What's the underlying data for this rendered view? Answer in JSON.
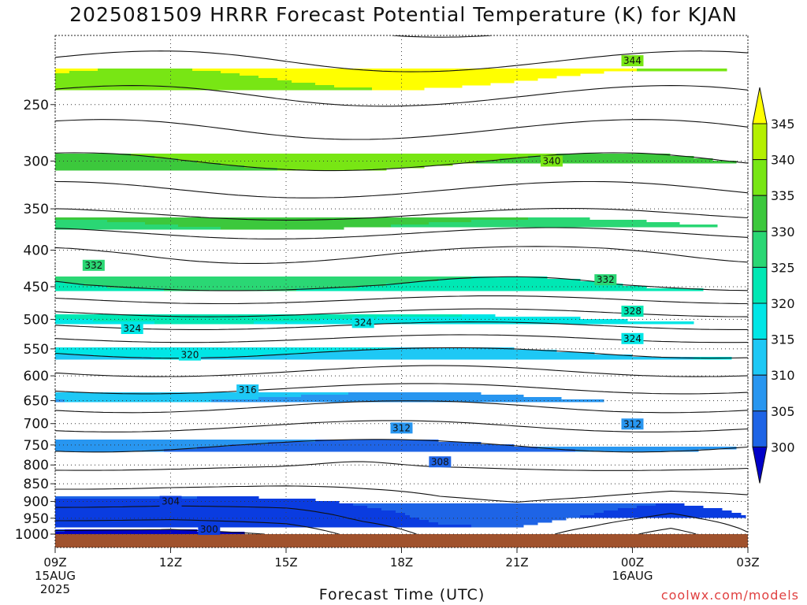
{
  "title": "2025081509 HRRR Forecast Potential Temperature (K) for KJAN",
  "watermark": "coolwx.com/models",
  "chart_data": {
    "type": "heatmap",
    "title": "2025081509 HRRR Forecast Potential Temperature (K) for KJAN",
    "xlabel": "Forecast Time (UTC)",
    "ylabel": "",
    "x_ticks": [
      {
        "hour": 0,
        "label": "09Z",
        "sub": [
          "15AUG",
          "2025"
        ]
      },
      {
        "hour": 3,
        "label": "12Z",
        "sub": []
      },
      {
        "hour": 6,
        "label": "15Z",
        "sub": []
      },
      {
        "hour": 9,
        "label": "18Z",
        "sub": []
      },
      {
        "hour": 12,
        "label": "21Z",
        "sub": []
      },
      {
        "hour": 15,
        "label": "00Z",
        "sub": [
          "16AUG"
        ]
      },
      {
        "hour": 18,
        "label": "03Z",
        "sub": []
      }
    ],
    "xlim_hours": [
      0,
      18
    ],
    "y_axis": "pressure (hPa), log scale, reversed",
    "y_ticks": [
      250,
      300,
      350,
      400,
      450,
      500,
      550,
      600,
      650,
      700,
      750,
      800,
      850,
      900,
      950,
      1000
    ],
    "ylim": [
      200,
      1040
    ],
    "colorbar": {
      "levels": [
        300,
        305,
        310,
        315,
        320,
        325,
        330,
        335,
        340,
        345
      ],
      "colors": [
        "#0000c8",
        "#0a3ce0",
        "#1e64e6",
        "#2896f0",
        "#1ec8f5",
        "#00e6e6",
        "#00e8b4",
        "#2ad774",
        "#3cc83c",
        "#78e614",
        "#b4f000",
        "#ffff00"
      ],
      "extend": "both"
    },
    "contour_interval": 2,
    "profile_pressures": [
      1000,
      950,
      900,
      850,
      800,
      750,
      700,
      650,
      600,
      550,
      500,
      450,
      400,
      350,
      300,
      250,
      200
    ],
    "profile_theta": [
      303,
      304.5,
      305.5,
      306.5,
      308.3,
      310,
      312.3,
      314.6,
      317.5,
      320.4,
      325,
      330,
      332.2,
      336.6,
      340.1,
      343.5,
      347.5
    ],
    "surface_anomaly": [
      {
        "hour": 0,
        "dtheta": -4
      },
      {
        "hour": 3,
        "dtheta": -4
      },
      {
        "hour": 6,
        "dtheta": -2.5
      },
      {
        "hour": 8,
        "dtheta": 0
      },
      {
        "hour": 10,
        "dtheta": 1.5
      },
      {
        "hour": 12,
        "dtheta": 1.5
      },
      {
        "hour": 14,
        "dtheta": 0
      },
      {
        "hour": 16,
        "dtheta": -2
      },
      {
        "hour": 18,
        "dtheta": 1
      }
    ],
    "contour_labels": [
      {
        "value": "344",
        "hour": 15.0,
        "pressure": 217
      },
      {
        "value": "340",
        "hour": 12.9,
        "pressure": 300
      },
      {
        "value": "332",
        "hour": 1.0,
        "pressure": 420
      },
      {
        "value": "332",
        "hour": 14.3,
        "pressure": 440
      },
      {
        "value": "328",
        "hour": 15.0,
        "pressure": 487
      },
      {
        "value": "324",
        "hour": 2.0,
        "pressure": 515
      },
      {
        "value": "324",
        "hour": 8.0,
        "pressure": 505
      },
      {
        "value": "324",
        "hour": 15.0,
        "pressure": 532
      },
      {
        "value": "320",
        "hour": 3.5,
        "pressure": 561
      },
      {
        "value": "316",
        "hour": 5.0,
        "pressure": 628
      },
      {
        "value": "312",
        "hour": 9.0,
        "pressure": 710
      },
      {
        "value": "312",
        "hour": 15.0,
        "pressure": 701
      },
      {
        "value": "308",
        "hour": 10.0,
        "pressure": 792
      },
      {
        "value": "304",
        "hour": 3.0,
        "pressure": 900
      },
      {
        "value": "300",
        "hour": 4.0,
        "pressure": 985
      }
    ]
  }
}
